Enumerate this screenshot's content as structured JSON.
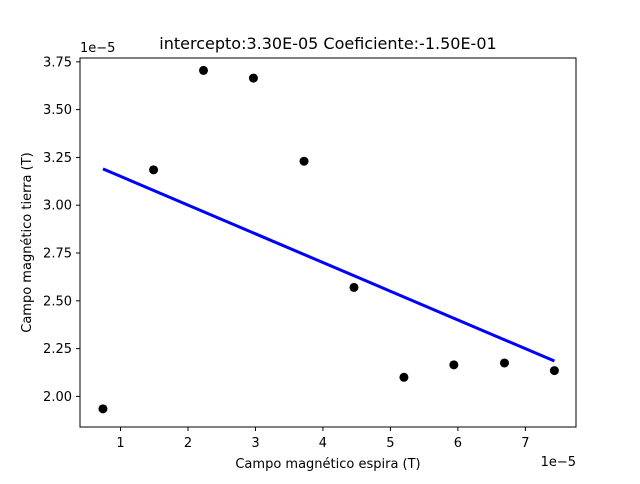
{
  "chart_data": {
    "type": "scatter",
    "title": "intercepto:3.30E-05 Coeficiente:-1.50E-01",
    "xlabel": "Campo magnético espira (T)",
    "ylabel": "Campo magnético tierra (T)",
    "x_offset_label": "1e−5",
    "y_offset_label": "1e−5",
    "xlim": [
      0.4,
      7.75
    ],
    "ylim": [
      1.84,
      3.77
    ],
    "xticks": [
      1,
      2,
      3,
      4,
      5,
      6,
      7
    ],
    "xtick_labels": [
      "1",
      "2",
      "3",
      "4",
      "5",
      "6",
      "7"
    ],
    "yticks": [
      2.0,
      2.25,
      2.5,
      2.75,
      3.0,
      3.25,
      3.5,
      3.75
    ],
    "ytick_labels": [
      "2.00",
      "2.25",
      "2.50",
      "2.75",
      "3.00",
      "3.25",
      "3.50",
      "3.75"
    ],
    "grid": false,
    "series": [
      {
        "kind": "scatter",
        "color": "#000000",
        "x": [
          0.74,
          1.49,
          2.23,
          2.97,
          3.72,
          4.46,
          5.2,
          5.94,
          6.69,
          7.43
        ],
        "y": [
          1.935,
          3.185,
          3.705,
          3.665,
          3.23,
          2.57,
          2.1,
          2.165,
          2.175,
          2.135
        ]
      },
      {
        "kind": "line",
        "color": "#0000ff",
        "x": [
          0.74,
          7.43
        ],
        "y": [
          3.19,
          2.185
        ]
      }
    ]
  }
}
